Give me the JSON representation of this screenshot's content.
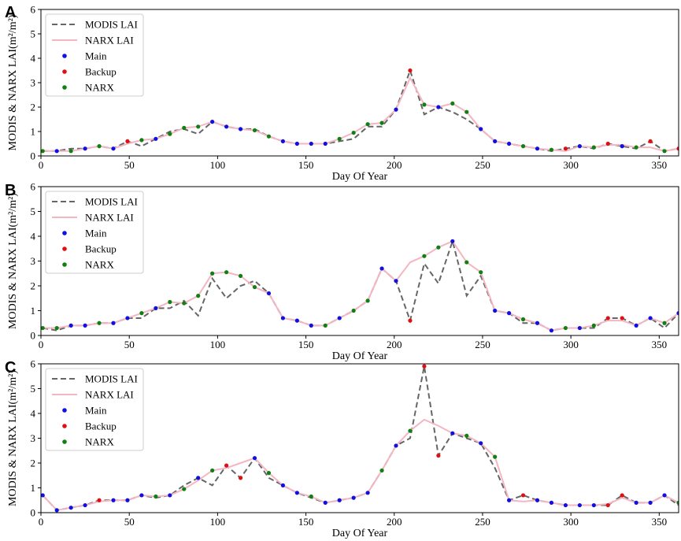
{
  "chart_data": [
    {
      "panel": "A",
      "type": "line",
      "xlabel": "Day Of Year",
      "ylabel": "MODIS & NARX LAI(m²/m²)",
      "xlim": [
        0,
        361
      ],
      "ylim": [
        0,
        6
      ],
      "xticks": [
        0,
        50,
        100,
        150,
        200,
        250,
        300,
        350
      ],
      "yticks": [
        0,
        1,
        2,
        3,
        4,
        5,
        6
      ],
      "legend": [
        "MODIS LAI",
        "NARX LAI",
        "Main",
        "Backup",
        "NARX"
      ],
      "modis_x": [
        1,
        9,
        17,
        25,
        33,
        41,
        49,
        57,
        65,
        73,
        81,
        89,
        97,
        105,
        113,
        121,
        129,
        137,
        145,
        153,
        161,
        169,
        177,
        185,
        193,
        201,
        209,
        217,
        225,
        233,
        241,
        249,
        257,
        265,
        273,
        281,
        289,
        297,
        305,
        313,
        321,
        329,
        337,
        345,
        353,
        361
      ],
      "modis_y": [
        0.2,
        0.2,
        0.3,
        0.3,
        0.4,
        0.3,
        0.6,
        0.4,
        0.7,
        1.0,
        1.1,
        0.9,
        1.4,
        1.2,
        1.1,
        1.1,
        0.8,
        0.6,
        0.5,
        0.5,
        0.5,
        0.6,
        0.7,
        1.2,
        1.2,
        1.9,
        3.5,
        1.7,
        2.0,
        1.8,
        1.5,
        1.1,
        0.6,
        0.5,
        0.4,
        0.3,
        0.2,
        0.3,
        0.4,
        0.3,
        0.5,
        0.4,
        0.3,
        0.6,
        0.2,
        0.3
      ],
      "narx_y": [
        0.2,
        0.2,
        0.2,
        0.3,
        0.4,
        0.3,
        0.5,
        0.65,
        0.7,
        0.9,
        1.15,
        1.2,
        1.4,
        1.2,
        1.1,
        1.05,
        0.8,
        0.6,
        0.5,
        0.5,
        0.5,
        0.7,
        0.95,
        1.3,
        1.35,
        1.9,
        3.2,
        2.1,
        2.0,
        2.15,
        1.8,
        1.1,
        0.6,
        0.5,
        0.4,
        0.3,
        0.25,
        0.2,
        0.4,
        0.35,
        0.45,
        0.45,
        0.35,
        0.35,
        0.2,
        0.3
      ],
      "point_source": [
        "NARX",
        "Main",
        "NARX",
        "Main",
        "NARX",
        "Main",
        "Backup",
        "NARX",
        "Main",
        "NARX",
        "NARX",
        "NARX",
        "Main",
        "Main",
        "Main",
        "NARX",
        "NARX",
        "Main",
        "Main",
        "Main",
        "Main",
        "NARX",
        "NARX",
        "NARX",
        "NARX",
        "Main",
        "Backup",
        "NARX",
        "Main",
        "NARX",
        "NARX",
        "Main",
        "Main",
        "Main",
        "NARX",
        "Main",
        "NARX",
        "Backup",
        "Main",
        "NARX",
        "Backup",
        "Main",
        "NARX",
        "Backup",
        "NARX",
        "Backup"
      ],
      "point_y": [
        0.2,
        0.2,
        0.2,
        0.3,
        0.4,
        0.3,
        0.6,
        0.65,
        0.7,
        0.9,
        1.15,
        1.2,
        1.4,
        1.2,
        1.1,
        1.05,
        0.8,
        0.6,
        0.5,
        0.5,
        0.5,
        0.7,
        0.95,
        1.3,
        1.35,
        1.9,
        3.5,
        2.1,
        2.0,
        2.15,
        1.8,
        1.1,
        0.6,
        0.5,
        0.4,
        0.3,
        0.25,
        0.3,
        0.4,
        0.35,
        0.5,
        0.4,
        0.35,
        0.6,
        0.2,
        0.3
      ]
    },
    {
      "panel": "B",
      "type": "line",
      "xlabel": "Day Of Year",
      "ylabel": "MODIS & NARX LAI(m²/m²)",
      "xlim": [
        0,
        361
      ],
      "ylim": [
        0,
        6
      ],
      "xticks": [
        0,
        50,
        100,
        150,
        200,
        250,
        300,
        350
      ],
      "yticks": [
        0,
        1,
        2,
        3,
        4,
        5,
        6
      ],
      "legend": [
        "MODIS LAI",
        "NARX LAI",
        "Main",
        "Backup",
        "NARX"
      ],
      "modis_x": [
        1,
        9,
        17,
        25,
        33,
        41,
        49,
        57,
        65,
        73,
        81,
        89,
        97,
        105,
        113,
        121,
        129,
        137,
        145,
        153,
        161,
        169,
        177,
        185,
        193,
        201,
        209,
        217,
        225,
        233,
        241,
        249,
        257,
        265,
        273,
        281,
        289,
        297,
        305,
        313,
        321,
        329,
        337,
        345,
        353,
        361
      ],
      "modis_y": [
        0.3,
        0.2,
        0.4,
        0.4,
        0.5,
        0.5,
        0.7,
        0.7,
        1.1,
        1.1,
        1.4,
        0.8,
        2.3,
        1.5,
        2.0,
        2.2,
        1.7,
        0.7,
        0.6,
        0.4,
        0.4,
        0.7,
        1.0,
        1.4,
        2.7,
        2.2,
        0.6,
        2.9,
        2.1,
        3.8,
        1.6,
        2.4,
        1.0,
        0.9,
        0.5,
        0.5,
        0.2,
        0.3,
        0.3,
        0.3,
        0.7,
        0.7,
        0.4,
        0.7,
        0.3,
        0.9
      ],
      "narx_y": [
        0.3,
        0.3,
        0.4,
        0.4,
        0.5,
        0.5,
        0.7,
        0.9,
        1.1,
        1.35,
        1.3,
        1.6,
        2.5,
        2.55,
        2.4,
        1.95,
        1.7,
        0.7,
        0.6,
        0.4,
        0.4,
        0.7,
        1.0,
        1.4,
        2.7,
        2.2,
        2.95,
        3.2,
        3.55,
        3.8,
        2.95,
        2.55,
        1.0,
        0.9,
        0.65,
        0.5,
        0.2,
        0.3,
        0.3,
        0.4,
        0.6,
        0.6,
        0.4,
        0.7,
        0.5,
        0.9
      ],
      "point_source": [
        "NARX",
        "NARX",
        "Main",
        "Main",
        "NARX",
        "Main",
        "Main",
        "NARX",
        "Main",
        "NARX",
        "NARX",
        "NARX",
        "NARX",
        "NARX",
        "NARX",
        "NARX",
        "Main",
        "Main",
        "Main",
        "Main",
        "NARX",
        "Main",
        "NARX",
        "NARX",
        "Main",
        "Main",
        "Backup",
        "NARX",
        "NARX",
        "Main",
        "NARX",
        "NARX",
        "Main",
        "Main",
        "NARX",
        "Main",
        "Main",
        "NARX",
        "Main",
        "NARX",
        "Backup",
        "Backup",
        "Main",
        "Main",
        "NARX",
        "Main"
      ],
      "point_y": [
        0.3,
        0.3,
        0.4,
        0.4,
        0.5,
        0.5,
        0.7,
        0.9,
        1.1,
        1.35,
        1.3,
        1.6,
        2.5,
        2.55,
        2.4,
        1.95,
        1.7,
        0.7,
        0.6,
        0.4,
        0.4,
        0.7,
        1.0,
        1.4,
        2.7,
        2.2,
        0.6,
        3.2,
        3.55,
        3.8,
        2.95,
        2.55,
        1.0,
        0.9,
        0.65,
        0.5,
        0.2,
        0.3,
        0.3,
        0.4,
        0.7,
        0.7,
        0.4,
        0.7,
        0.5,
        0.9
      ]
    },
    {
      "panel": "C",
      "type": "line",
      "xlabel": "Day Of Year",
      "ylabel": "MODIS & NARX LAI(m²/m²)",
      "xlim": [
        0,
        361
      ],
      "ylim": [
        0,
        6
      ],
      "xticks": [
        0,
        50,
        100,
        150,
        200,
        250,
        300,
        350
      ],
      "yticks": [
        0,
        1,
        2,
        3,
        4,
        5,
        6
      ],
      "legend": [
        "MODIS LAI",
        "NARX LAI",
        "Main",
        "Backup",
        "NARX"
      ],
      "modis_x": [
        1,
        9,
        17,
        25,
        33,
        41,
        49,
        57,
        65,
        73,
        81,
        89,
        97,
        105,
        113,
        121,
        129,
        137,
        145,
        153,
        161,
        169,
        177,
        185,
        193,
        201,
        209,
        217,
        225,
        233,
        241,
        249,
        257,
        265,
        273,
        281,
        289,
        297,
        305,
        313,
        321,
        329,
        337,
        345,
        353,
        361
      ],
      "modis_y": [
        0.7,
        0.1,
        0.2,
        0.3,
        0.5,
        0.5,
        0.5,
        0.7,
        0.6,
        0.7,
        1.1,
        1.4,
        1.1,
        1.9,
        1.4,
        2.2,
        1.4,
        1.1,
        0.8,
        0.6,
        0.4,
        0.5,
        0.6,
        0.8,
        1.7,
        2.7,
        3.0,
        5.9,
        2.3,
        3.2,
        3.0,
        2.8,
        1.8,
        0.5,
        0.7,
        0.5,
        0.4,
        0.3,
        0.3,
        0.3,
        0.3,
        0.7,
        0.4,
        0.4,
        0.7,
        0.3
      ],
      "narx_y": [
        0.7,
        0.1,
        0.2,
        0.3,
        0.45,
        0.5,
        0.5,
        0.7,
        0.65,
        0.7,
        0.95,
        1.3,
        1.7,
        1.8,
        2.0,
        2.2,
        1.6,
        1.1,
        0.8,
        0.65,
        0.4,
        0.5,
        0.6,
        0.8,
        1.7,
        2.7,
        3.3,
        3.75,
        3.5,
        3.2,
        3.1,
        2.8,
        2.25,
        0.5,
        0.45,
        0.5,
        0.4,
        0.3,
        0.3,
        0.3,
        0.35,
        0.6,
        0.4,
        0.4,
        0.7,
        0.4
      ],
      "point_source": [
        "Main",
        "Main",
        "Main",
        "Main",
        "Backup",
        "Main",
        "Main",
        "Main",
        "NARX",
        "Main",
        "NARX",
        "Main",
        "NARX",
        "Backup",
        "Backup",
        "Main",
        "NARX",
        "Main",
        "Main",
        "NARX",
        "Main",
        "Main",
        "Main",
        "Main",
        "NARX",
        "Main",
        "NARX",
        "Backup",
        "Backup",
        "Main",
        "NARX",
        "Main",
        "NARX",
        "Main",
        "Backup",
        "Main",
        "Main",
        "Main",
        "Main",
        "Main",
        "Backup",
        "Backup",
        "Main",
        "Main",
        "Main",
        "NARX"
      ],
      "point_y": [
        0.7,
        0.1,
        0.2,
        0.3,
        0.5,
        0.5,
        0.5,
        0.7,
        0.65,
        0.7,
        0.95,
        1.4,
        1.7,
        1.9,
        1.4,
        2.2,
        1.6,
        1.1,
        0.8,
        0.65,
        0.4,
        0.5,
        0.6,
        0.8,
        1.7,
        2.7,
        3.3,
        5.9,
        2.3,
        3.2,
        3.1,
        2.8,
        2.25,
        0.5,
        0.7,
        0.5,
        0.4,
        0.3,
        0.3,
        0.3,
        0.3,
        0.7,
        0.4,
        0.4,
        0.7,
        0.4
      ]
    }
  ],
  "colors": {
    "modis_line": "#666666",
    "narx_line": "#f4b6c2",
    "main": "#1010e0",
    "backup": "#e01010",
    "narx": "#108010"
  }
}
